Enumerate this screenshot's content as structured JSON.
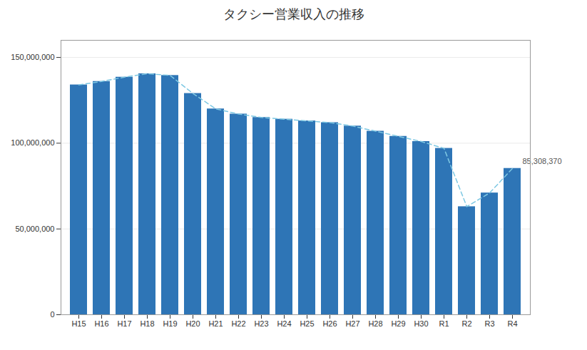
{
  "chart_data": {
    "type": "bar",
    "title": "タクシー営業収入の推移",
    "categories": [
      "H15",
      "H16",
      "H17",
      "H18",
      "H19",
      "H20",
      "H21",
      "H22",
      "H23",
      "H24",
      "H25",
      "H26",
      "H27",
      "H28",
      "H29",
      "H30",
      "R1",
      "R2",
      "R3",
      "R4"
    ],
    "series": [
      {
        "type": "bar",
        "color": "#2E75B6",
        "values": [
          134000000,
          136000000,
          138500000,
          140500000,
          139500000,
          129000000,
          120000000,
          117000000,
          115000000,
          114000000,
          113000000,
          112000000,
          110000000,
          107000000,
          104000000,
          101000000,
          97000000,
          63000000,
          71000000,
          85308370
        ]
      },
      {
        "type": "line",
        "color": "#7EC8E3",
        "line_style": "dashed",
        "values": [
          134000000,
          136000000,
          138500000,
          140500000,
          139500000,
          129000000,
          120000000,
          117000000,
          115000000,
          114000000,
          113000000,
          112000000,
          110000000,
          107000000,
          104000000,
          101000000,
          97000000,
          63000000,
          71000000,
          85308370
        ]
      }
    ],
    "annotations": [
      "85,308,370"
    ],
    "ylim": [
      0,
      160000000
    ],
    "yticks": [
      0,
      {
        "value": 50000000,
        "label": "50,000,000"
      },
      {
        "value": 100000000,
        "label": "100,000,000"
      },
      {
        "value": 150000000,
        "label": "150,000,000"
      }
    ],
    "grid": true
  }
}
